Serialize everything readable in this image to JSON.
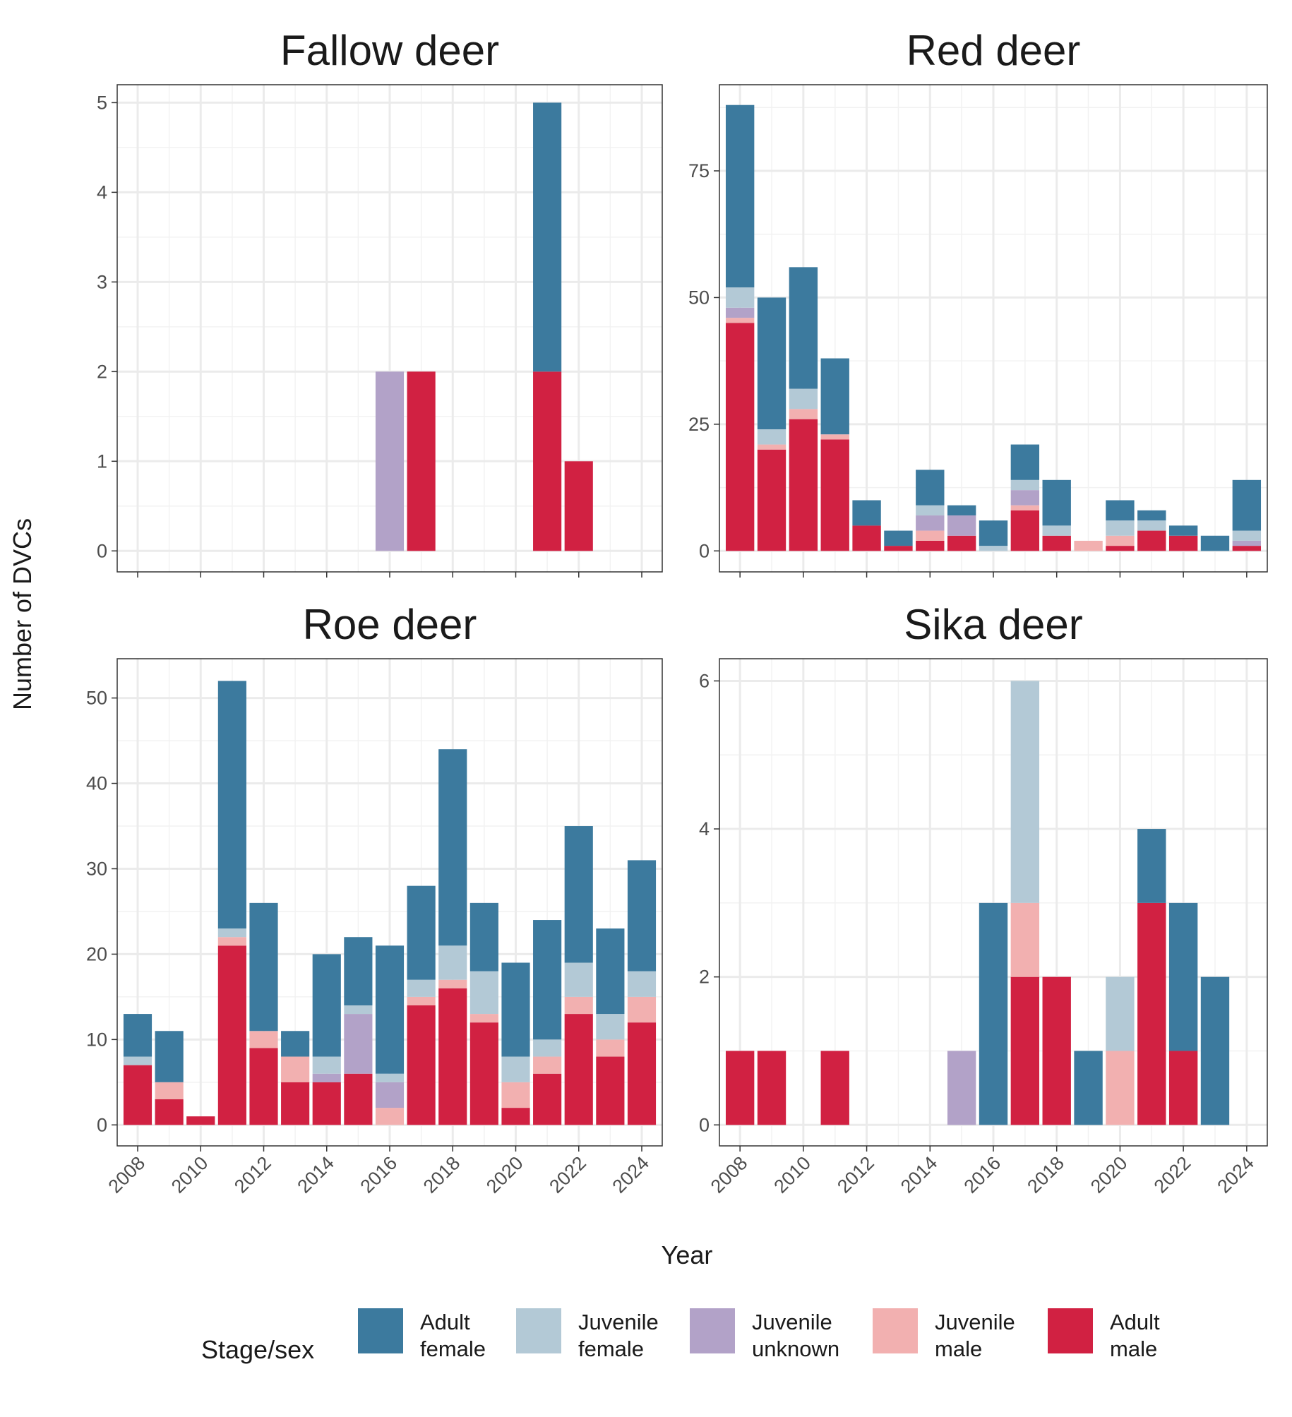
{
  "figure": {
    "ylabel": "Number of DVCs",
    "xlabel": "Year",
    "legend_title": "Stage/sex",
    "legend_position": "bottom",
    "grid": true
  },
  "legend": [
    {
      "key": "af",
      "lines": [
        "Adult",
        "female"
      ],
      "color": "#3c7a9e"
    },
    {
      "key": "jf",
      "lines": [
        "Juvenile",
        "female"
      ],
      "color": "#b3c9d6"
    },
    {
      "key": "ju",
      "lines": [
        "Juvenile",
        "unknown"
      ],
      "color": "#b2a2c8"
    },
    {
      "key": "jm",
      "lines": [
        "Juvenile",
        "male"
      ],
      "color": "#f2b0b0"
    },
    {
      "key": "am",
      "lines": [
        "Adult",
        "male"
      ],
      "color": "#d12142"
    }
  ],
  "chart_data": [
    {
      "type": "bar",
      "stacked": true,
      "title": "Fallow deer",
      "x": [
        2008,
        2009,
        2010,
        2011,
        2012,
        2013,
        2014,
        2015,
        2016,
        2017,
        2018,
        2019,
        2020,
        2021,
        2022,
        2023,
        2024
      ],
      "ylim": [
        0,
        5.2
      ],
      "yticks": [
        0,
        1,
        2,
        3,
        4,
        5
      ],
      "series": [
        {
          "name": "Adult male",
          "key": "am",
          "values": [
            0,
            0,
            0,
            0,
            0,
            0,
            0,
            0,
            0,
            2,
            0,
            0,
            0,
            2,
            1,
            0,
            0
          ]
        },
        {
          "name": "Juvenile male",
          "key": "jm",
          "values": [
            0,
            0,
            0,
            0,
            0,
            0,
            0,
            0,
            0,
            0,
            0,
            0,
            0,
            0,
            0,
            0,
            0
          ]
        },
        {
          "name": "Juvenile unknown",
          "key": "ju",
          "values": [
            0,
            0,
            0,
            0,
            0,
            0,
            0,
            0,
            2,
            0,
            0,
            0,
            0,
            0,
            0,
            0,
            0
          ]
        },
        {
          "name": "Juvenile female",
          "key": "jf",
          "values": [
            0,
            0,
            0,
            0,
            0,
            0,
            0,
            0,
            0,
            0,
            0,
            0,
            0,
            0,
            0,
            0,
            0
          ]
        },
        {
          "name": "Adult female",
          "key": "af",
          "values": [
            0,
            0,
            0,
            0,
            0,
            0,
            0,
            0,
            0,
            0,
            0,
            0,
            0,
            3,
            0,
            0,
            0
          ]
        }
      ]
    },
    {
      "type": "bar",
      "stacked": true,
      "title": "Red deer",
      "x": [
        2008,
        2009,
        2010,
        2011,
        2012,
        2013,
        2014,
        2015,
        2016,
        2017,
        2018,
        2019,
        2020,
        2021,
        2022,
        2023,
        2024
      ],
      "ylim": [
        0,
        92
      ],
      "yticks": [
        0,
        25,
        50,
        75
      ],
      "series": [
        {
          "name": "Adult male",
          "key": "am",
          "values": [
            45,
            20,
            26,
            22,
            5,
            1,
            2,
            3,
            0,
            8,
            3,
            0,
            1,
            4,
            3,
            0,
            1
          ]
        },
        {
          "name": "Juvenile male",
          "key": "jm",
          "values": [
            1,
            1,
            2,
            1,
            0,
            0,
            2,
            0,
            0,
            1,
            0,
            2,
            2,
            0,
            0,
            0,
            0
          ]
        },
        {
          "name": "Juvenile unknown",
          "key": "ju",
          "values": [
            2,
            0,
            0,
            0,
            0,
            0,
            3,
            4,
            0,
            3,
            0,
            0,
            0,
            0,
            0,
            0,
            1
          ]
        },
        {
          "name": "Juvenile female",
          "key": "jf",
          "values": [
            4,
            3,
            4,
            0,
            0,
            0,
            2,
            0,
            1,
            2,
            2,
            0,
            3,
            2,
            0,
            0,
            2
          ]
        },
        {
          "name": "Adult female",
          "key": "af",
          "values": [
            36,
            26,
            24,
            15,
            5,
            3,
            7,
            2,
            5,
            7,
            9,
            0,
            4,
            2,
            2,
            3,
            10
          ]
        }
      ]
    },
    {
      "type": "bar",
      "stacked": true,
      "title": "Roe deer",
      "x": [
        2008,
        2009,
        2010,
        2011,
        2012,
        2013,
        2014,
        2015,
        2016,
        2017,
        2018,
        2019,
        2020,
        2021,
        2022,
        2023,
        2024
      ],
      "ylim": [
        0,
        54.6
      ],
      "yticks": [
        0,
        10,
        20,
        30,
        40,
        50
      ],
      "series": [
        {
          "name": "Adult male",
          "key": "am",
          "values": [
            7,
            3,
            1,
            21,
            9,
            5,
            5,
            6,
            0,
            14,
            16,
            12,
            2,
            6,
            13,
            8,
            12
          ]
        },
        {
          "name": "Juvenile male",
          "key": "jm",
          "values": [
            0,
            2,
            0,
            1,
            2,
            3,
            0,
            0,
            2,
            1,
            1,
            1,
            3,
            2,
            2,
            2,
            3
          ]
        },
        {
          "name": "Juvenile unknown",
          "key": "ju",
          "values": [
            0,
            0,
            0,
            0,
            0,
            0,
            1,
            7,
            3,
            0,
            0,
            0,
            0,
            0,
            0,
            0,
            0
          ]
        },
        {
          "name": "Juvenile female",
          "key": "jf",
          "values": [
            1,
            0,
            0,
            1,
            0,
            0,
            2,
            1,
            1,
            2,
            4,
            5,
            3,
            2,
            4,
            3,
            3
          ]
        },
        {
          "name": "Adult female",
          "key": "af",
          "values": [
            5,
            6,
            0,
            29,
            15,
            3,
            12,
            8,
            15,
            11,
            23,
            8,
            11,
            14,
            16,
            10,
            13
          ]
        }
      ]
    },
    {
      "type": "bar",
      "stacked": true,
      "title": "Sika deer",
      "x": [
        2008,
        2009,
        2010,
        2011,
        2012,
        2013,
        2014,
        2015,
        2016,
        2017,
        2018,
        2019,
        2020,
        2021,
        2022,
        2023,
        2024
      ],
      "ylim": [
        0,
        6.3
      ],
      "yticks": [
        0,
        2,
        4,
        6
      ],
      "series": [
        {
          "name": "Adult male",
          "key": "am",
          "values": [
            1,
            1,
            0,
            1,
            0,
            0,
            0,
            0,
            0,
            2,
            2,
            0,
            0,
            3,
            1,
            0,
            0
          ]
        },
        {
          "name": "Juvenile male",
          "key": "jm",
          "values": [
            0,
            0,
            0,
            0,
            0,
            0,
            0,
            0,
            0,
            1,
            0,
            0,
            1,
            0,
            0,
            0,
            0
          ]
        },
        {
          "name": "Juvenile unknown",
          "key": "ju",
          "values": [
            0,
            0,
            0,
            0,
            0,
            0,
            0,
            1,
            0,
            0,
            0,
            0,
            0,
            0,
            0,
            0,
            0
          ]
        },
        {
          "name": "Juvenile female",
          "key": "jf",
          "values": [
            0,
            0,
            0,
            0,
            0,
            0,
            0,
            0,
            0,
            3,
            0,
            0,
            1,
            0,
            0,
            0,
            0
          ]
        },
        {
          "name": "Adult female",
          "key": "af",
          "values": [
            0,
            0,
            0,
            0,
            0,
            0,
            0,
            0,
            3,
            0,
            0,
            1,
            0,
            1,
            2,
            2,
            0
          ]
        }
      ]
    }
  ],
  "x_tick_labels": [
    "2008",
    "2010",
    "2012",
    "2014",
    "2016",
    "2018",
    "2020",
    "2022",
    "2024"
  ]
}
